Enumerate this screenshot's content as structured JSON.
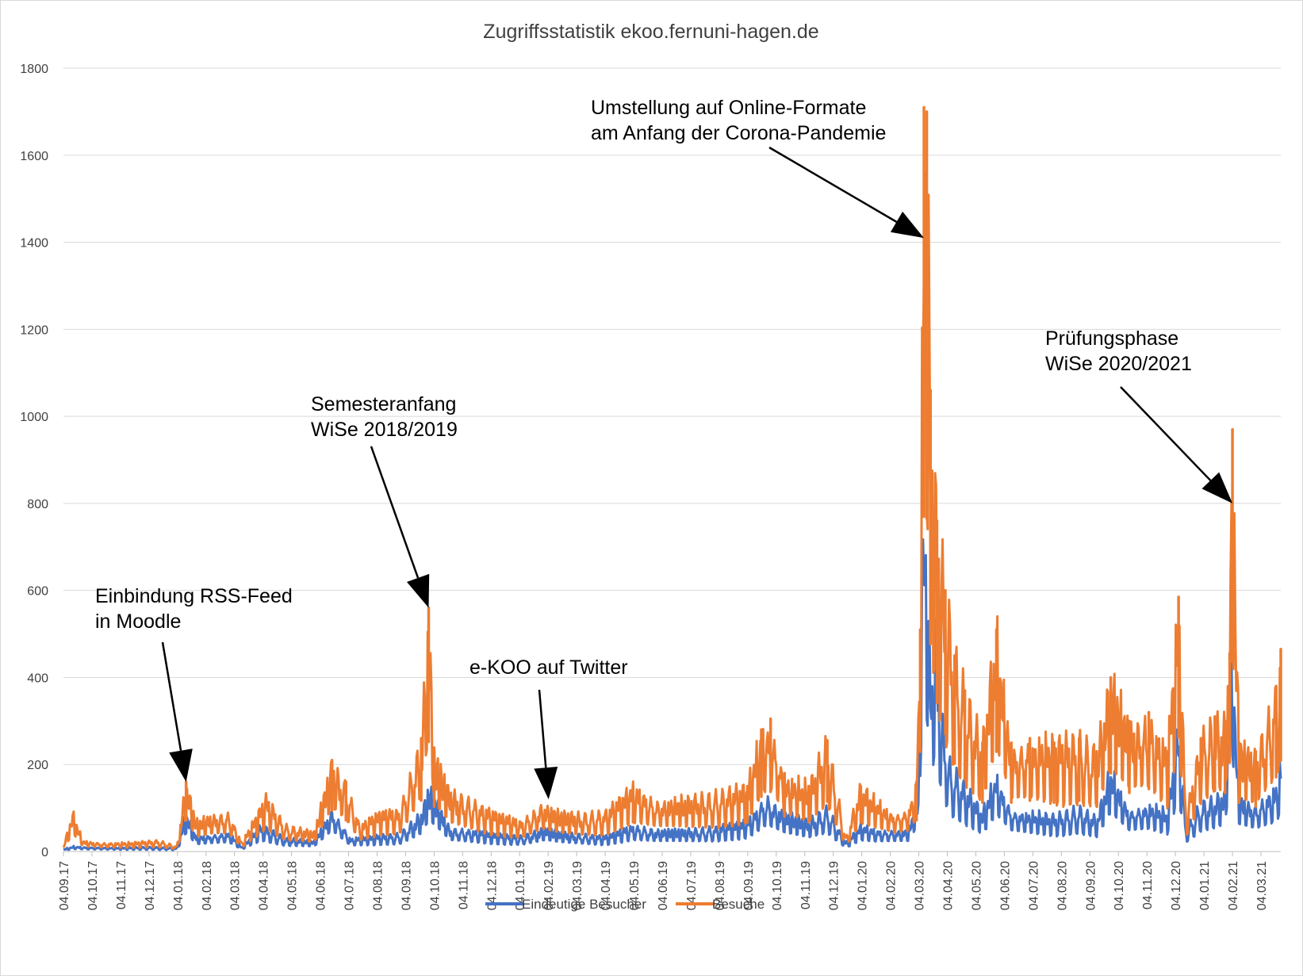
{
  "chart_data": {
    "type": "line",
    "title": "Zugriffsstatistik ekoo.fernuni-hagen.de",
    "xlabel": "",
    "ylabel": "",
    "ylim": [
      0,
      1800
    ],
    "yticks": [
      0,
      200,
      400,
      600,
      800,
      1000,
      1200,
      1400,
      1600,
      1800
    ],
    "x_tick_labels": [
      "04.09.17",
      "04.10.17",
      "04.11.17",
      "04.12.17",
      "04.01.18",
      "04.02.18",
      "04.03.18",
      "04.04.18",
      "04.05.18",
      "04.06.18",
      "04.07.18",
      "04.08.18",
      "04.09.18",
      "04.10.18",
      "04.11.18",
      "04.12.18",
      "04.01.19",
      "04.02.19",
      "04.03.19",
      "04.04.19",
      "04.05.19",
      "04.06.19",
      "04.07.19",
      "04.08.19",
      "04.09.19",
      "04.10.19",
      "04.11.19",
      "04.12.19",
      "04.01.20",
      "04.02.20",
      "04.03.20",
      "04.04.20",
      "04.05.20",
      "04.06.20",
      "04.07.20",
      "04.08.20",
      "04.09.20",
      "04.10.20",
      "04.11.20",
      "04.12.20",
      "04.01.21",
      "04.02.21",
      "04.03.21"
    ],
    "x_range": [
      "2017-09-04",
      "2021-04-06"
    ],
    "grid": true,
    "legend_position": "bottom",
    "series": [
      {
        "name": "Eindeutige Besucher",
        "color": "#4472C4",
        "points": [
          [
            "2017-09-04",
            5
          ],
          [
            "2017-09-15",
            12
          ],
          [
            "2017-10-01",
            10
          ],
          [
            "2017-11-01",
            9
          ],
          [
            "2017-12-01",
            10
          ],
          [
            "2018-01-04",
            8
          ],
          [
            "2018-01-14",
            90
          ],
          [
            "2018-01-25",
            35
          ],
          [
            "2018-02-10",
            40
          ],
          [
            "2018-03-01",
            45
          ],
          [
            "2018-03-15",
            10
          ],
          [
            "2018-04-05",
            60
          ],
          [
            "2018-05-01",
            30
          ],
          [
            "2018-06-01",
            25
          ],
          [
            "2018-06-20",
            100
          ],
          [
            "2018-07-10",
            30
          ],
          [
            "2018-08-01",
            35
          ],
          [
            "2018-09-01",
            40
          ],
          [
            "2018-09-25",
            90
          ],
          [
            "2018-10-02",
            150
          ],
          [
            "2018-10-10",
            120
          ],
          [
            "2018-10-25",
            55
          ],
          [
            "2018-11-15",
            50
          ],
          [
            "2018-12-15",
            40
          ],
          [
            "2019-01-10",
            35
          ],
          [
            "2019-02-05",
            55
          ],
          [
            "2019-02-20",
            45
          ],
          [
            "2019-03-15",
            40
          ],
          [
            "2019-04-10",
            35
          ],
          [
            "2019-05-10",
            60
          ],
          [
            "2019-06-05",
            50
          ],
          [
            "2019-07-05",
            50
          ],
          [
            "2019-08-05",
            55
          ],
          [
            "2019-09-10",
            70
          ],
          [
            "2019-10-01",
            130
          ],
          [
            "2019-10-20",
            90
          ],
          [
            "2019-11-15",
            70
          ],
          [
            "2019-12-05",
            100
          ],
          [
            "2019-12-25",
            20
          ],
          [
            "2020-01-10",
            60
          ],
          [
            "2020-01-25",
            50
          ],
          [
            "2020-02-15",
            50
          ],
          [
            "2020-03-01",
            50
          ],
          [
            "2020-03-12",
            130
          ],
          [
            "2020-03-18",
            850
          ],
          [
            "2020-03-25",
            410
          ],
          [
            "2020-04-01",
            500
          ],
          [
            "2020-04-05",
            330
          ],
          [
            "2020-04-15",
            200
          ],
          [
            "2020-05-01",
            150
          ],
          [
            "2020-05-20",
            90
          ],
          [
            "2020-06-04",
            180
          ],
          [
            "2020-06-20",
            100
          ],
          [
            "2020-07-10",
            90
          ],
          [
            "2020-08-05",
            80
          ],
          [
            "2020-09-01",
            100
          ],
          [
            "2020-09-20",
            75
          ],
          [
            "2020-10-05",
            190
          ],
          [
            "2020-10-25",
            100
          ],
          [
            "2020-11-15",
            110
          ],
          [
            "2020-12-05",
            90
          ],
          [
            "2020-12-17",
            290
          ],
          [
            "2020-12-25",
            50
          ],
          [
            "2021-01-10",
            110
          ],
          [
            "2021-01-25",
            120
          ],
          [
            "2021-02-05",
            135
          ],
          [
            "2021-02-13",
            450
          ],
          [
            "2021-02-20",
            130
          ],
          [
            "2021-03-10",
            110
          ],
          [
            "2021-04-01",
            150
          ],
          [
            "2021-04-06",
            200
          ]
        ]
      },
      {
        "name": "Besuche",
        "color": "#ED7D31",
        "points": [
          [
            "2017-09-04",
            10
          ],
          [
            "2017-09-14",
            90
          ],
          [
            "2017-09-25",
            25
          ],
          [
            "2017-10-15",
            20
          ],
          [
            "2017-11-15",
            20
          ],
          [
            "2017-12-15",
            25
          ],
          [
            "2018-01-04",
            12
          ],
          [
            "2018-01-14",
            160
          ],
          [
            "2018-01-25",
            70
          ],
          [
            "2018-02-10",
            85
          ],
          [
            "2018-03-01",
            90
          ],
          [
            "2018-03-15",
            20
          ],
          [
            "2018-04-10",
            125
          ],
          [
            "2018-05-01",
            60
          ],
          [
            "2018-06-01",
            45
          ],
          [
            "2018-06-20",
            210
          ],
          [
            "2018-07-05",
            160
          ],
          [
            "2018-07-20",
            60
          ],
          [
            "2018-08-10",
            90
          ],
          [
            "2018-09-01",
            95
          ],
          [
            "2018-09-24",
            260
          ],
          [
            "2018-10-02",
            560
          ],
          [
            "2018-10-08",
            230
          ],
          [
            "2018-10-25",
            140
          ],
          [
            "2018-11-15",
            120
          ],
          [
            "2018-12-10",
            90
          ],
          [
            "2019-01-10",
            70
          ],
          [
            "2019-02-01",
            110
          ],
          [
            "2019-02-20",
            90
          ],
          [
            "2019-03-15",
            85
          ],
          [
            "2019-04-10",
            90
          ],
          [
            "2019-05-10",
            150
          ],
          [
            "2019-06-05",
            120
          ],
          [
            "2019-07-05",
            120
          ],
          [
            "2019-08-05",
            130
          ],
          [
            "2019-09-10",
            150
          ],
          [
            "2019-09-25",
            280
          ],
          [
            "2019-10-05",
            305
          ],
          [
            "2019-10-20",
            180
          ],
          [
            "2019-11-15",
            150
          ],
          [
            "2019-12-05",
            255
          ],
          [
            "2019-12-25",
            30
          ],
          [
            "2020-01-10",
            150
          ],
          [
            "2020-01-25",
            120
          ],
          [
            "2020-02-15",
            90
          ],
          [
            "2020-03-01",
            100
          ],
          [
            "2020-03-10",
            160
          ],
          [
            "2020-03-14",
            510
          ],
          [
            "2020-03-18",
            1710
          ],
          [
            "2020-03-21",
            1700
          ],
          [
            "2020-03-25",
            1060
          ],
          [
            "2020-04-01",
            760
          ],
          [
            "2020-04-10",
            600
          ],
          [
            "2020-04-20",
            450
          ],
          [
            "2020-05-01",
            370
          ],
          [
            "2020-05-20",
            250
          ],
          [
            "2020-06-04",
            510
          ],
          [
            "2020-06-20",
            250
          ],
          [
            "2020-07-10",
            260
          ],
          [
            "2020-08-05",
            250
          ],
          [
            "2020-09-01",
            260
          ],
          [
            "2020-09-20",
            230
          ],
          [
            "2020-10-05",
            400
          ],
          [
            "2020-10-25",
            300
          ],
          [
            "2020-11-15",
            320
          ],
          [
            "2020-12-05",
            230
          ],
          [
            "2020-12-17",
            585
          ],
          [
            "2020-12-25",
            80
          ],
          [
            "2021-01-10",
            260
          ],
          [
            "2021-01-25",
            310
          ],
          [
            "2021-02-05",
            300
          ],
          [
            "2021-02-10",
            455
          ],
          [
            "2021-02-13",
            970
          ],
          [
            "2021-02-20",
            250
          ],
          [
            "2021-03-10",
            230
          ],
          [
            "2021-04-01",
            380
          ],
          [
            "2021-04-06",
            465
          ]
        ]
      }
    ],
    "annotations": [
      {
        "lines": [
          "Einbindung RSS-Feed",
          "in Moodle"
        ],
        "target": [
          "2018-01-14",
          160
        ]
      },
      {
        "lines": [
          "Semesteranfang",
          "WiSe 2018/2019"
        ],
        "target": [
          "2018-10-02",
          560
        ]
      },
      {
        "lines": [
          "e-KOO auf Twitter"
        ],
        "target": [
          "2019-02-08",
          120
        ]
      },
      {
        "lines": [
          "Umstellung auf Online-Formate",
          "am Anfang der Corona-Pandemie"
        ],
        "target": [
          "2020-03-18",
          1410
        ]
      },
      {
        "lines": [
          "Prüfungsphase",
          "WiSe 2020/2021"
        ],
        "target": [
          "2021-02-13",
          800
        ]
      }
    ]
  }
}
